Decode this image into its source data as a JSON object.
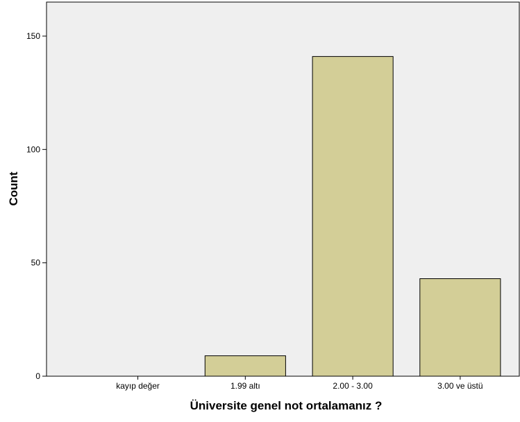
{
  "chart_data": {
    "type": "bar",
    "xlabel": "Üniversite genel not ortalamanız ?",
    "ylabel": "Count",
    "categories": [
      "kayıp değer",
      "1.99 altı",
      "2.00 - 3.00",
      "3.00 ve üstü"
    ],
    "values": [
      0,
      9,
      141,
      43
    ],
    "ylim": [
      0,
      165
    ],
    "yticks": [
      0,
      50,
      100,
      150
    ],
    "grid": false,
    "legend": "none",
    "colors": {
      "plot_background": "#efefef",
      "bar_fill": "#d3ce97",
      "bar_stroke": "#000000"
    }
  }
}
